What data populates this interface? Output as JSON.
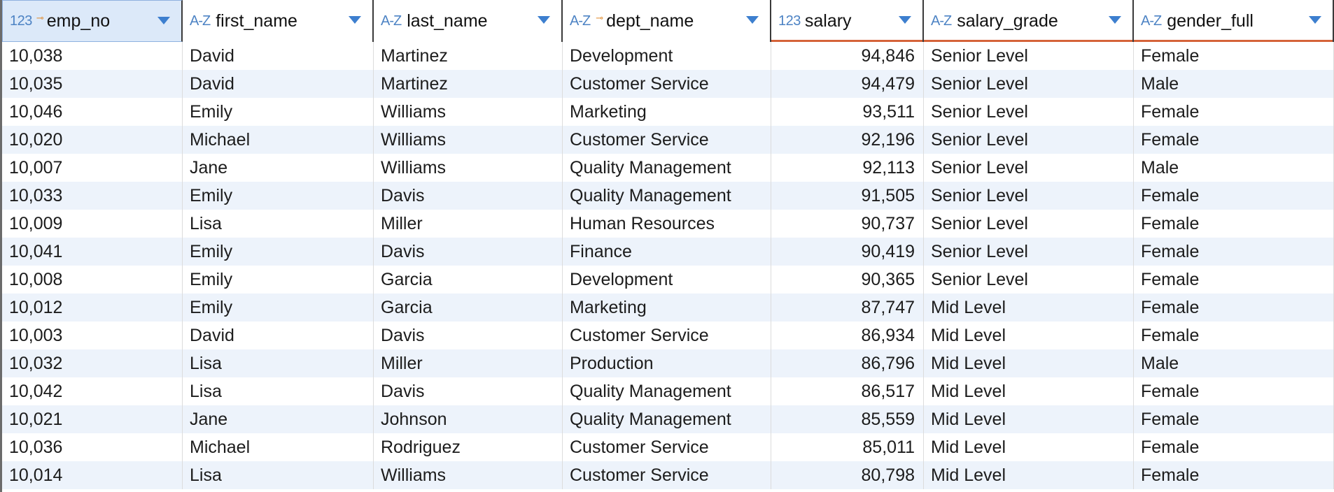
{
  "table": {
    "columns": [
      {
        "label": "emp_no",
        "type_icon": "123",
        "key": true,
        "selected": true,
        "sorted": false,
        "align": "left"
      },
      {
        "label": "first_name",
        "type_icon": "A-Z",
        "key": false,
        "selected": false,
        "sorted": false,
        "align": "left"
      },
      {
        "label": "last_name",
        "type_icon": "A-Z",
        "key": false,
        "selected": false,
        "sorted": false,
        "align": "left"
      },
      {
        "label": "dept_name",
        "type_icon": "A-Z",
        "key": true,
        "selected": false,
        "sorted": false,
        "align": "left"
      },
      {
        "label": "salary",
        "type_icon": "123",
        "key": false,
        "selected": false,
        "sorted": true,
        "align": "right"
      },
      {
        "label": "salary_grade",
        "type_icon": "A-Z",
        "key": false,
        "selected": false,
        "sorted": true,
        "align": "left"
      },
      {
        "label": "gender_full",
        "type_icon": "A-Z",
        "key": false,
        "selected": false,
        "sorted": true,
        "align": "left"
      }
    ],
    "rows": [
      [
        "10,038",
        "David",
        "Martinez",
        "Development",
        "94,846",
        "Senior Level",
        "Female"
      ],
      [
        "10,035",
        "David",
        "Martinez",
        "Customer Service",
        "94,479",
        "Senior Level",
        "Male"
      ],
      [
        "10,046",
        "Emily",
        "Williams",
        "Marketing",
        "93,511",
        "Senior Level",
        "Female"
      ],
      [
        "10,020",
        "Michael",
        "Williams",
        "Customer Service",
        "92,196",
        "Senior Level",
        "Female"
      ],
      [
        "10,007",
        "Jane",
        "Williams",
        "Quality Management",
        "92,113",
        "Senior Level",
        "Male"
      ],
      [
        "10,033",
        "Emily",
        "Davis",
        "Quality Management",
        "91,505",
        "Senior Level",
        "Female"
      ],
      [
        "10,009",
        "Lisa",
        "Miller",
        "Human Resources",
        "90,737",
        "Senior Level",
        "Female"
      ],
      [
        "10,041",
        "Emily",
        "Davis",
        "Finance",
        "90,419",
        "Senior Level",
        "Female"
      ],
      [
        "10,008",
        "Emily",
        "Garcia",
        "Development",
        "90,365",
        "Senior Level",
        "Female"
      ],
      [
        "10,012",
        "Emily",
        "Garcia",
        "Marketing",
        "87,747",
        "Mid Level",
        "Female"
      ],
      [
        "10,003",
        "David",
        "Davis",
        "Customer Service",
        "86,934",
        "Mid Level",
        "Female"
      ],
      [
        "10,032",
        "Lisa",
        "Miller",
        "Production",
        "86,796",
        "Mid Level",
        "Male"
      ],
      [
        "10,042",
        "Lisa",
        "Davis",
        "Quality Management",
        "86,517",
        "Mid Level",
        "Female"
      ],
      [
        "10,021",
        "Jane",
        "Johnson",
        "Quality Management",
        "85,559",
        "Mid Level",
        "Female"
      ],
      [
        "10,036",
        "Michael",
        "Rodriguez",
        "Customer Service",
        "85,011",
        "Mid Level",
        "Female"
      ],
      [
        "10,014",
        "Lisa",
        "Williams",
        "Customer Service",
        "80,798",
        "Mid Level",
        "Female"
      ]
    ]
  },
  "colors": {
    "accent": "#3d7fcf",
    "sort_underline": "#d5633a",
    "key_icon": "#e08a2b",
    "alt_row": "#edf3fb",
    "selected_header": "#dce9f9"
  }
}
